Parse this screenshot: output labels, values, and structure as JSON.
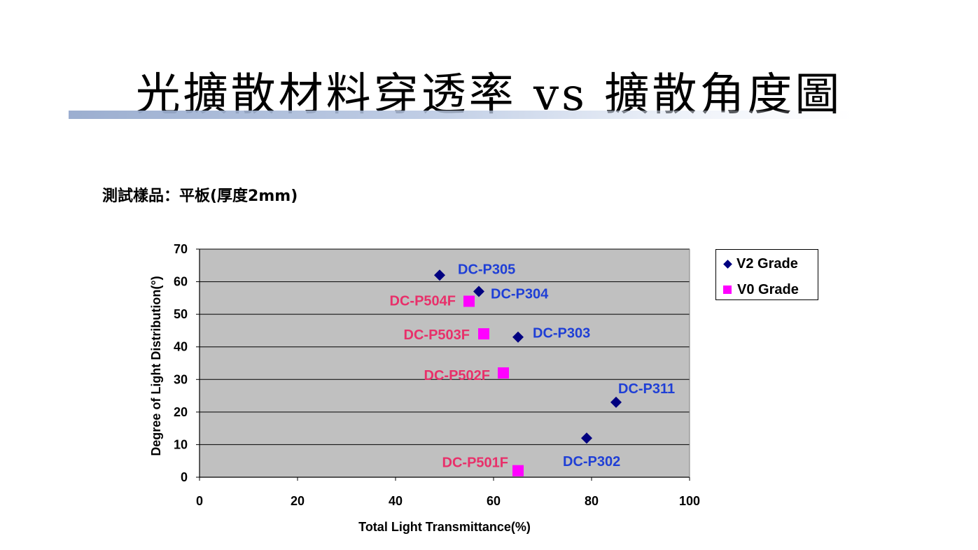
{
  "slide": {
    "title": "光擴散材料穿透率 vs 擴散角度圖",
    "subtitle": "測試樣品：平板(厚度2mm)"
  },
  "colors": {
    "plot_background": "#c0c0c0",
    "v2_marker": "#000080",
    "v0_marker": "#ff00ff",
    "v2_label": "#1f3fd6",
    "v0_label": "#e8306a"
  },
  "chart_data": {
    "type": "scatter",
    "title": "",
    "xlabel": "Total Light Transmittance(%)",
    "ylabel": "Degree of Light Distribution(°)",
    "xlim": [
      0,
      100
    ],
    "ylim": [
      0,
      70
    ],
    "xticks": [
      0,
      20,
      40,
      60,
      80,
      100
    ],
    "yticks": [
      0,
      10,
      20,
      30,
      40,
      50,
      60,
      70
    ],
    "grid": "horizontal",
    "legend": "right",
    "series": [
      {
        "name": "V2 Grade",
        "marker": "diamond",
        "points": [
          {
            "label": "DC-P305",
            "x": 49,
            "y": 62
          },
          {
            "label": "DC-P304",
            "x": 57,
            "y": 57
          },
          {
            "label": "DC-P303",
            "x": 65,
            "y": 43
          },
          {
            "label": "DC-P311",
            "x": 85,
            "y": 23
          },
          {
            "label": "DC-P302",
            "x": 79,
            "y": 12
          }
        ]
      },
      {
        "name": "V0 Grade",
        "marker": "square",
        "points": [
          {
            "label": "DC-P504F",
            "x": 55,
            "y": 54
          },
          {
            "label": "DC-P503F",
            "x": 58,
            "y": 44
          },
          {
            "label": "DC-P502F",
            "x": 62,
            "y": 32
          },
          {
            "label": "DC-P501F",
            "x": 65,
            "y": 2
          }
        ]
      }
    ]
  }
}
